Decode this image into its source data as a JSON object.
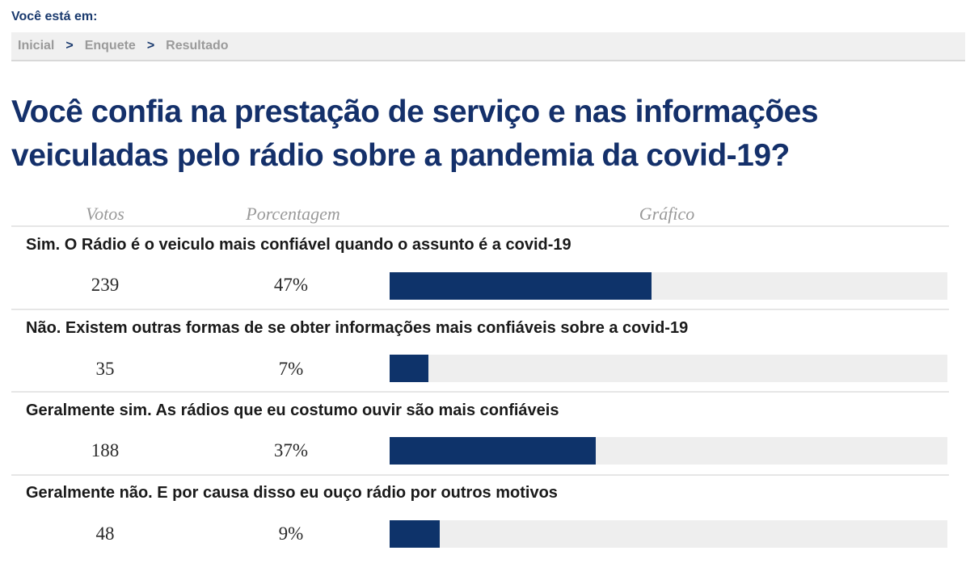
{
  "location_label": "Você está em:",
  "breadcrumb": {
    "items": [
      "Inicial",
      "Enquete",
      "Resultado"
    ],
    "separator": ">"
  },
  "question": "Você confia na prestação de serviço e nas informações veiculadas pelo rádio sobre a pandemia da covid-19?",
  "columns": {
    "votes": "Votos",
    "percent": "Porcentagem",
    "chart": "Gráfico"
  },
  "colors": {
    "bar_fill": "#0e336a",
    "bar_track": "#eeeeee",
    "title": "#14306a"
  },
  "options": [
    {
      "label": "Sim. O Rádio é o veiculo mais confiável quando o assunto é a covid-19",
      "votes": "239",
      "percent_label": "47%"
    },
    {
      "label": "Não. Existem outras formas de se obter informações mais confiáveis sobre a covid-19",
      "votes": "35",
      "percent_label": "7%"
    },
    {
      "label": "Geralmente sim. As rádios que eu costumo ouvir são mais confiáveis",
      "votes": "188",
      "percent_label": "37%"
    },
    {
      "label": "Geralmente não. E por causa disso eu ouço rádio por outros motivos",
      "votes": "48",
      "percent_label": "9%"
    }
  ],
  "chart_data": {
    "type": "bar",
    "categories": [
      "Sim. O Rádio é o veiculo mais confiável quando o assunto é a covid-19",
      "Não. Existem outras formas de se obter informações mais confiáveis sobre a covid-19",
      "Geralmente sim. As rádios que eu costumo ouvir são mais confiáveis",
      "Geralmente não. E por causa disso eu ouço rádio por outros motivos"
    ],
    "series": [
      {
        "values": [
          47,
          7,
          37,
          9
        ]
      }
    ],
    "votes": [
      239,
      35,
      188,
      48
    ],
    "ylim": [
      0,
      100
    ],
    "orientation": "horizontal",
    "grid": false
  }
}
